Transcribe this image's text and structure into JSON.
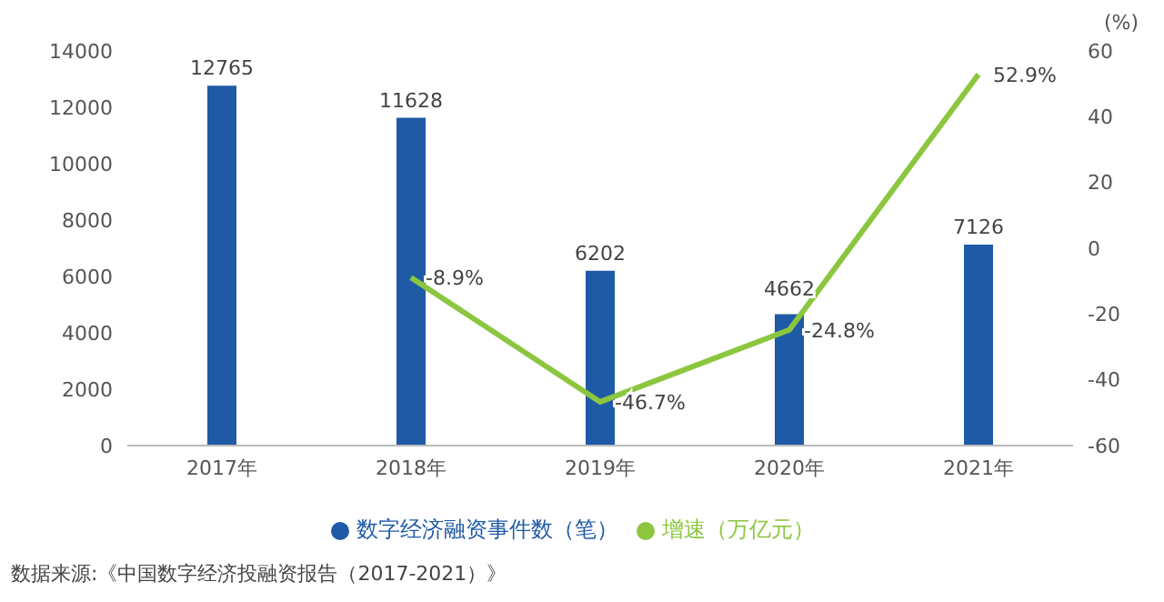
{
  "chart_data": {
    "type": "bar",
    "categories": [
      "2017年",
      "2018年",
      "2019年",
      "2020年",
      "2021年"
    ],
    "series": [
      {
        "name": "数字经济融资事件数（笔）",
        "color": "#1f5aa6",
        "values": [
          12765,
          11628,
          6202,
          4662,
          7126
        ],
        "value_labels": [
          "12765",
          "11628",
          "6202",
          "4662",
          "7126"
        ]
      },
      {
        "name": "增速（万亿元）",
        "type": "line",
        "axis": "y2",
        "color": "#8cc63f",
        "values": [
          null,
          -8.9,
          -46.7,
          -24.8,
          52.9
        ],
        "value_labels": [
          null,
          "-8.9%",
          "-46.7%",
          "-24.8%",
          "52.9%"
        ]
      }
    ],
    "ylim": [
      0,
      14000
    ],
    "yticks": [
      0,
      2000,
      4000,
      6000,
      8000,
      10000,
      12000,
      14000
    ],
    "y2lim": [
      -60,
      60
    ],
    "y2ticks": [
      -60,
      -40,
      -20,
      0,
      20,
      40,
      60
    ],
    "y2label": "(%)",
    "legend": "bottom",
    "marker": "none",
    "annotations": [
      "数据来源:《中国数字经济投融资报告（2017-2021）》"
    ]
  }
}
